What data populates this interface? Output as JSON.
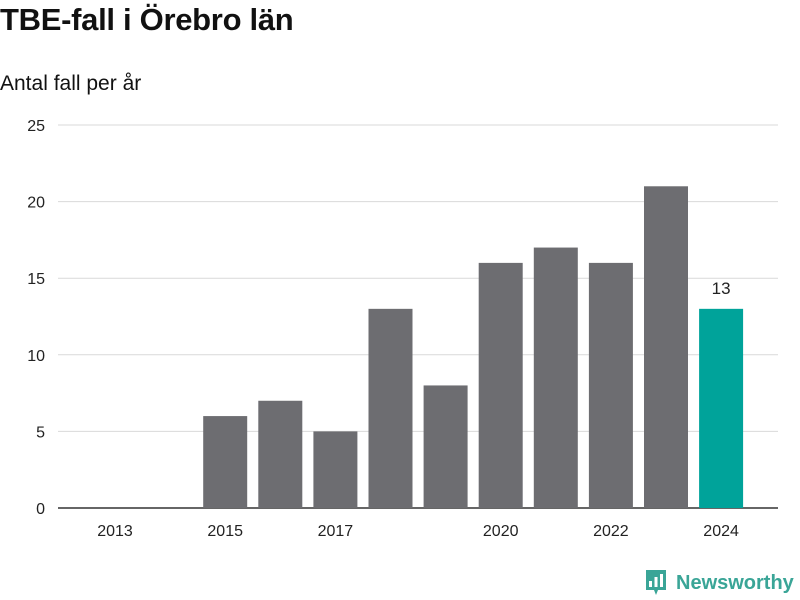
{
  "title": "TBE-fall i Örebro län",
  "subtitle": "Antal fall per år",
  "brand": {
    "name": "Newsworthy",
    "icon": "newsworthy-logo-icon",
    "color": "#3aa597"
  },
  "colors": {
    "bar": "#6d6d71",
    "highlight": "#00a39a",
    "grid": "#d9d9d9",
    "axis": "#333333"
  },
  "chart_data": {
    "type": "bar",
    "title": "TBE-fall i Örebro län",
    "subtitle": "Antal fall per år",
    "categories": [
      "2013",
      "2014",
      "2015",
      "2016",
      "2017",
      "2018",
      "2019",
      "2020",
      "2021",
      "2022",
      "2023",
      "2024"
    ],
    "values": [
      0,
      0,
      6,
      7,
      5,
      13,
      8,
      16,
      17,
      16,
      21,
      13
    ],
    "x_tick_labels": [
      "2013",
      "2015",
      "2017",
      "2020",
      "2022",
      "2024"
    ],
    "y_ticks": [
      0,
      5,
      10,
      15,
      20,
      25
    ],
    "ylim": [
      0,
      25
    ],
    "highlight": {
      "category": "2024",
      "label": "13"
    },
    "grid": true,
    "legend": "none"
  }
}
